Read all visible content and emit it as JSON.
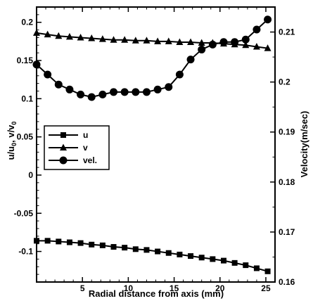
{
  "chart_data": {
    "type": "line",
    "xlabel": "Radial distance from axis (mm)",
    "ylabel_left": "u/u",
    "ylabel_left_sub": "0",
    "ylabel_left_sep": ", v/v",
    "ylabel_left_sub2": "0",
    "ylabel_right": "Velocity(m/sec)",
    "xlim": [
      0,
      26
    ],
    "ylim_left": [
      -0.14,
      0.22
    ],
    "ylim_right": [
      0.16,
      0.215
    ],
    "x_ticks": [
      5,
      10,
      15,
      20,
      25
    ],
    "y_left_ticks": [
      -0.1,
      -0.05,
      0,
      0.05,
      0.1,
      0.15,
      0.2
    ],
    "y_left_tick_labels": [
      "-0.1",
      "-0.05",
      "0",
      "0.05",
      "0.1",
      "0.15",
      "0.2"
    ],
    "y_right_ticks": [
      0.16,
      0.17,
      0.18,
      0.19,
      0.2,
      0.21
    ],
    "y_right_tick_labels": [
      "0.16",
      "0.17",
      "0.18",
      "0.19",
      "0.2",
      "0.21"
    ],
    "legend_position": "left-middle",
    "series": [
      {
        "name": "u",
        "marker": "square",
        "axis": "left",
        "x": [
          0,
          1.2,
          2.4,
          3.6,
          4.8,
          6,
          7.2,
          8.4,
          9.6,
          10.8,
          12,
          13.2,
          14.4,
          15.6,
          16.8,
          18,
          19.2,
          20.4,
          21.6,
          22.8,
          24,
          25.2
        ],
        "y": [
          -0.086,
          -0.086,
          -0.087,
          -0.088,
          -0.089,
          -0.091,
          -0.092,
          -0.094,
          -0.095,
          -0.097,
          -0.098,
          -0.1,
          -0.102,
          -0.104,
          -0.106,
          -0.108,
          -0.11,
          -0.112,
          -0.115,
          -0.118,
          -0.122,
          -0.126
        ]
      },
      {
        "name": "v",
        "marker": "triangle",
        "axis": "left",
        "x": [
          0,
          1.2,
          2.4,
          3.6,
          4.8,
          6,
          7.2,
          8.4,
          9.6,
          10.8,
          12,
          13.2,
          14.4,
          15.6,
          16.8,
          18,
          19.2,
          20.4,
          21.6,
          22.8,
          24,
          25.2
        ],
        "y": [
          0.186,
          0.184,
          0.182,
          0.181,
          0.18,
          0.179,
          0.178,
          0.177,
          0.177,
          0.176,
          0.176,
          0.175,
          0.175,
          0.174,
          0.174,
          0.173,
          0.173,
          0.172,
          0.171,
          0.17,
          0.168,
          0.166
        ]
      },
      {
        "name": "vel.",
        "marker": "circle",
        "axis": "right",
        "x": [
          0,
          1.2,
          2.4,
          3.6,
          4.8,
          6,
          7.2,
          8.4,
          9.6,
          10.8,
          12,
          13.2,
          14.4,
          15.6,
          16.8,
          18,
          19.2,
          20.4,
          21.6,
          22.8,
          24,
          25.2
        ],
        "y": [
          0.2035,
          0.2015,
          0.1995,
          0.1985,
          0.1975,
          0.197,
          0.1975,
          0.198,
          0.198,
          0.198,
          0.198,
          0.1985,
          0.199,
          0.2015,
          0.2045,
          0.2065,
          0.2075,
          0.208,
          0.208,
          0.2085,
          0.2105,
          0.2125
        ]
      }
    ]
  }
}
